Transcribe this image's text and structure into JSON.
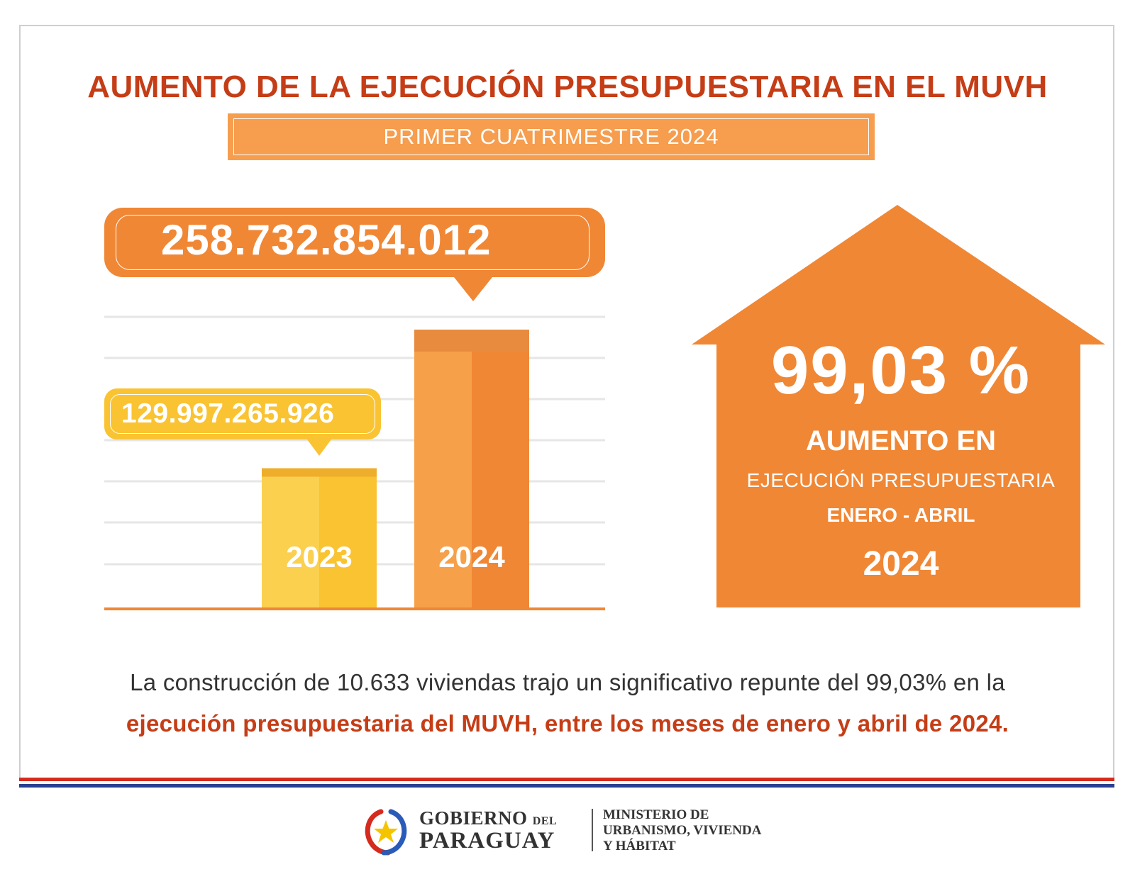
{
  "header": {
    "title": "AUMENTO DE LA EJECUCIÓN PRESUPUESTARIA EN EL MUVH",
    "subtitle": "PRIMER CUATRIMESTRE 2024"
  },
  "chart_data": {
    "type": "bar",
    "categories": [
      "2023",
      "2024"
    ],
    "values": [
      129997265926,
      258732854012
    ],
    "value_labels": [
      "129.997.265.926",
      "258.732.854.012"
    ],
    "colors": [
      "#f9c332",
      "#f08735"
    ],
    "grid": true,
    "title": "",
    "xlabel": "",
    "ylabel": ""
  },
  "highlight": {
    "percent": "99,03 %",
    "line1": "AUMENTO EN",
    "line2": "EJECUCIÓN PRESUPUESTARIA",
    "line3": "ENERO - ABRIL",
    "year": "2024",
    "color": "#f08735"
  },
  "summary": {
    "line1": "La construcción de 10.633 viviendas trajo un significativo repunte del 99,03% en la",
    "line2": "ejecución presupuestaria del MUVH, entre los meses de enero y abril de 2024."
  },
  "footer": {
    "gobierno_1": "GOBIERNO",
    "gobierno_del": "DEL",
    "gobierno_2": "PARAGUAY",
    "ministerio_1": "MINISTERIO DE",
    "ministerio_2": "URBANISMO, VIVIENDA",
    "ministerio_3": "Y HÁBITAT",
    "stripe_colors": [
      "#d52b1e",
      "#ffffff",
      "#0038a8"
    ]
  },
  "colors": {
    "title_red": "#c53d16",
    "accent_orange": "#f08735",
    "light_orange": "#f69d4e",
    "yellow": "#f9c332"
  }
}
